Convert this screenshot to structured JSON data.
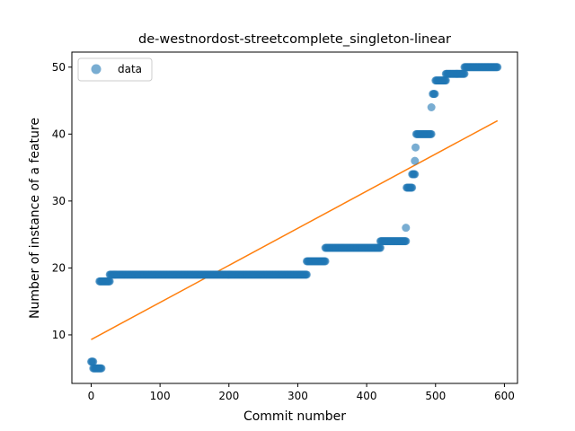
{
  "chart_data": {
    "type": "scatter",
    "title": "de-westnordost-streetcomplete_singleton-linear",
    "xlabel": "Commit number",
    "ylabel": "Number of instance of a feature",
    "xlim": [
      -28,
      619
    ],
    "ylim": [
      2.75,
      52.25
    ],
    "xticks": [
      0,
      100,
      200,
      300,
      400,
      500,
      600
    ],
    "yticks": [
      10,
      20,
      30,
      40,
      50
    ],
    "grid": false,
    "legend": {
      "position": "top-left",
      "entries": [
        "data"
      ]
    },
    "colors": {
      "data": "#1f77b4",
      "fit": "#ff7f0e"
    },
    "series": [
      {
        "name": "data",
        "kind": "scatter",
        "segments": [
          {
            "x": [
              0,
              3
            ],
            "y": 6
          },
          {
            "x": [
              3,
              15
            ],
            "y": 5
          },
          {
            "x": [
              12,
              27
            ],
            "y": 18
          },
          {
            "x": [
              27,
              313
            ],
            "y": 19
          },
          {
            "x": [
              313,
              340
            ],
            "y": 21
          },
          {
            "x": [
              340,
              420
            ],
            "y": 23
          },
          {
            "x": [
              420,
              457
            ],
            "y": 24
          },
          {
            "x": [
              457,
              457
            ],
            "y": 26
          },
          {
            "x": [
              458,
              466
            ],
            "y": 32
          },
          {
            "x": [
              466,
              470
            ],
            "y": 34
          },
          {
            "x": [
              470,
              470
            ],
            "y": 36
          },
          {
            "x": [
              471,
              471
            ],
            "y": 38
          },
          {
            "x": [
              472,
              494
            ],
            "y": 40
          },
          {
            "x": [
              494,
              494
            ],
            "y": 44
          },
          {
            "x": [
              496,
              499
            ],
            "y": 46
          },
          {
            "x": [
              500,
              515
            ],
            "y": 48
          },
          {
            "x": [
              515,
              542
            ],
            "y": 49
          },
          {
            "x": [
              542,
              590
            ],
            "y": 50
          }
        ]
      },
      {
        "name": "",
        "kind": "line",
        "x": [
          0,
          590
        ],
        "y": [
          9.3,
          42.0
        ]
      }
    ]
  }
}
